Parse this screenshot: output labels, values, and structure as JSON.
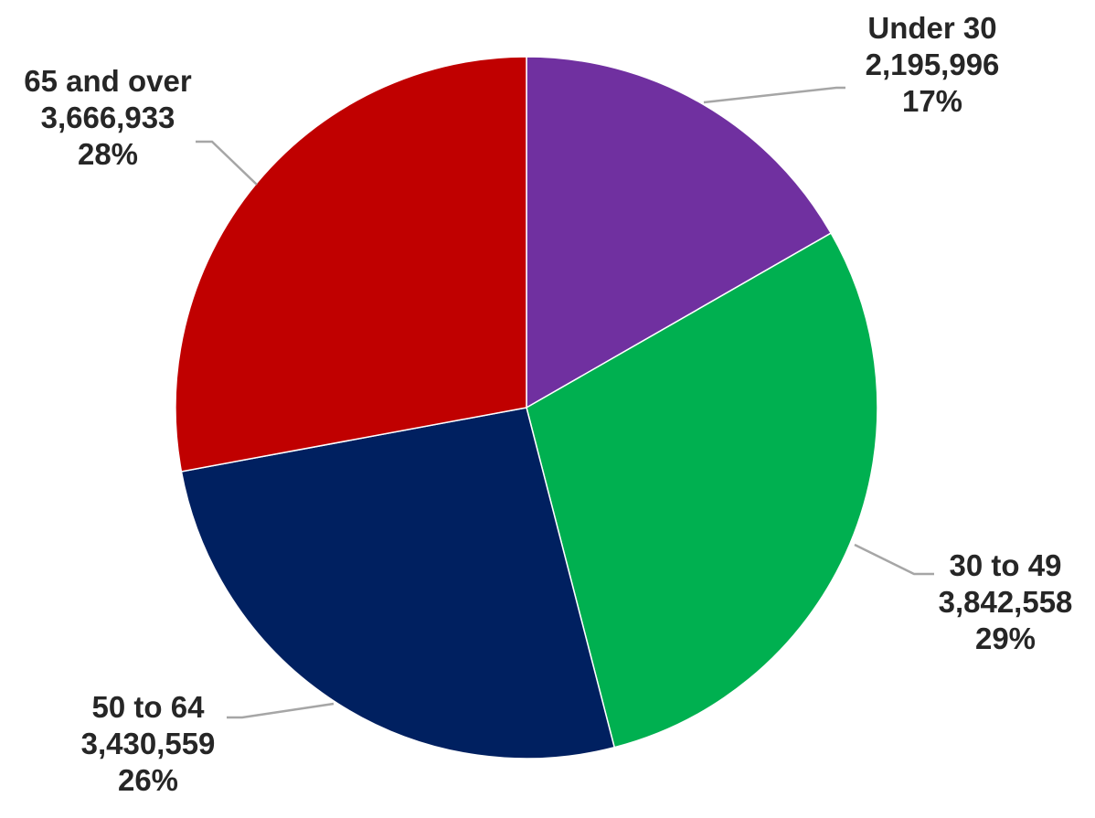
{
  "chart_data": {
    "type": "pie",
    "title": "",
    "start_angle_deg": 0,
    "direction": "clockwise",
    "legend": "none",
    "slices": [
      {
        "label": "Under 30",
        "value": 2195996,
        "display_value": "2,195,996",
        "percent": "17%",
        "color": "#7030a0"
      },
      {
        "label": "30 to 49",
        "value": 3842558,
        "display_value": "3,842,558",
        "percent": "29%",
        "color": "#00b050"
      },
      {
        "label": "50 to 64",
        "value": 3430559,
        "display_value": "3,430,559",
        "percent": "26%",
        "color": "#002060"
      },
      {
        "label": "65 and over",
        "value": 3666933,
        "display_value": "3,666,933",
        "percent": "28%",
        "color": "#c00000"
      }
    ]
  }
}
